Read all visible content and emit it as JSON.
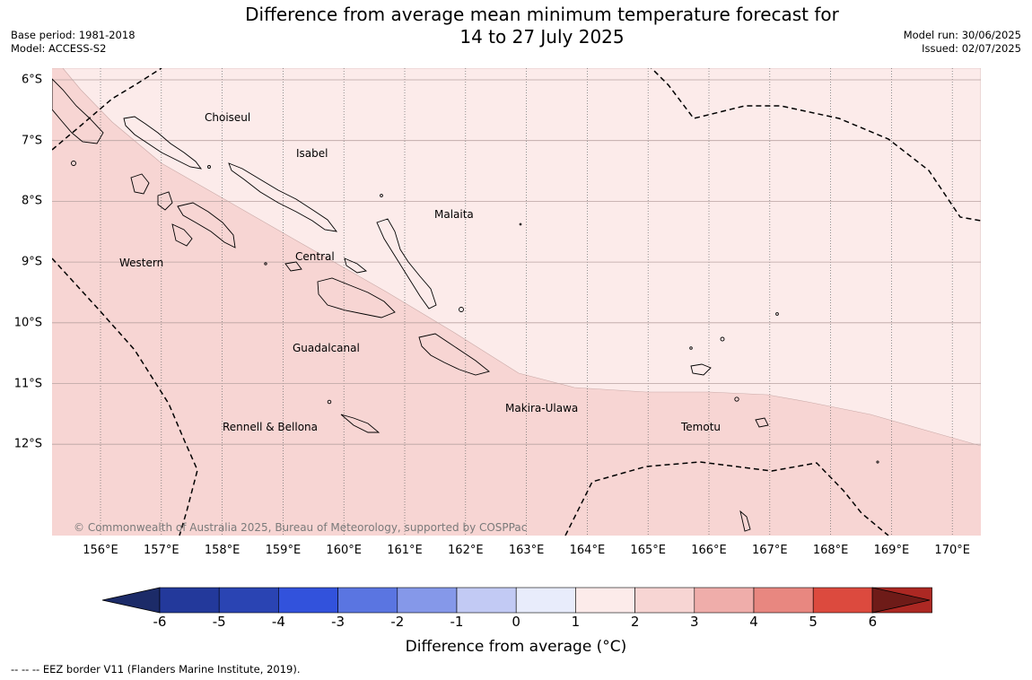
{
  "header": {
    "title_line1": "Difference from average mean minimum temperature forecast for",
    "title_line2": "14 to 27 July 2025",
    "base_period": "Base period: 1981-2018",
    "model": "Model: ACCESS-S2",
    "model_run": "Model run: 30/06/2025",
    "issued": "Issued: 02/07/2025"
  },
  "map": {
    "lat_labels": [
      "6°S",
      "7°S",
      "8°S",
      "9°S",
      "10°S",
      "11°S",
      "12°S"
    ],
    "lon_labels": [
      "156°E",
      "157°E",
      "158°E",
      "159°E",
      "160°E",
      "161°E",
      "162°E",
      "163°E",
      "164°E",
      "165°E",
      "166°E",
      "167°E",
      "168°E",
      "169°E",
      "170°E"
    ],
    "regions": {
      "choiseul": "Choiseul",
      "isabel": "Isabel",
      "malaita": "Malaita",
      "western": "Western",
      "central": "Central",
      "guadalcanal": "Guadalcanal",
      "makira": "Makira-Ulawa",
      "rennell": "Rennell & Bellona",
      "temotu": "Temotu"
    },
    "copyright": "© Commonwealth of Australia 2025, Bureau of Meteorology, supported by COSPPac",
    "anomaly_classes": {
      "northeast": "0 to 1",
      "southwest": "1 to 2"
    }
  },
  "colorbar": {
    "title": "Difference from average (°C)",
    "ticks": [
      "-6",
      "-5",
      "-4",
      "-3",
      "-2",
      "-1",
      "0",
      "1",
      "2",
      "3",
      "4",
      "5",
      "6"
    ],
    "colors": [
      "#23399b",
      "#2a44b3",
      "#3252dc",
      "#5a75e1",
      "#8598e9",
      "#c2caf4",
      "#e8ecfb",
      "#fcebea",
      "#f7d5d3",
      "#efadaa",
      "#e88780",
      "#dc4a3e",
      "#ac2823"
    ],
    "under_color": "#1c2b68",
    "over_color": "#6e1b18"
  },
  "footnote": "--  --  -- EEZ border V11 (Flanders Marine Institute, 2019)."
}
